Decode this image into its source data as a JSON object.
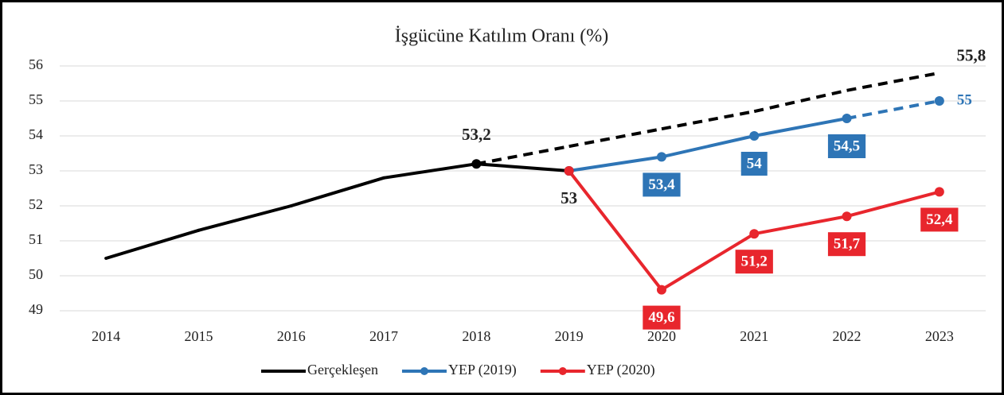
{
  "chart_data": {
    "type": "line",
    "title": "İşgücüne Katılım Oranı (%)",
    "categories": [
      "2014",
      "2015",
      "2016",
      "2017",
      "2018",
      "2019",
      "2020",
      "2021",
      "2022",
      "2023"
    ],
    "ylim": [
      49,
      56
    ],
    "yticks": [
      49,
      50,
      51,
      52,
      53,
      54,
      55,
      56
    ],
    "grid": true,
    "legend": "bottom",
    "series": [
      {
        "name": "Gerçekleşen",
        "color": "#000000",
        "marker": false,
        "values": [
          50.5,
          51.3,
          52.0,
          52.8,
          53.2,
          53.0,
          null,
          null,
          null,
          null
        ],
        "value_labels": [
          null,
          null,
          null,
          null,
          "53,2",
          "53",
          null,
          null,
          null,
          null
        ]
      },
      {
        "color": "#000000",
        "dashed": true,
        "values": [
          null,
          null,
          null,
          null,
          53.2,
          53.7,
          54.2,
          54.7,
          55.3,
          55.8
        ],
        "value_labels": [
          null,
          null,
          null,
          null,
          null,
          null,
          null,
          null,
          null,
          "55,8"
        ]
      },
      {
        "name": "YEP (2019)",
        "color": "#2e75b6",
        "marker": true,
        "dashed_last_segment": true,
        "values": [
          null,
          null,
          null,
          null,
          null,
          53.0,
          53.4,
          54.0,
          54.5,
          55.0
        ],
        "value_labels": [
          null,
          null,
          null,
          null,
          null,
          null,
          "53,4",
          "54",
          "54,5",
          "55"
        ]
      },
      {
        "name": "YEP (2020)",
        "color": "#e8262d",
        "marker": true,
        "values": [
          null,
          null,
          null,
          null,
          null,
          53.0,
          49.6,
          51.2,
          51.7,
          52.4
        ],
        "value_labels": [
          null,
          null,
          null,
          null,
          null,
          null,
          "49,6",
          "51,2",
          "51,7",
          "52,4"
        ]
      }
    ]
  }
}
